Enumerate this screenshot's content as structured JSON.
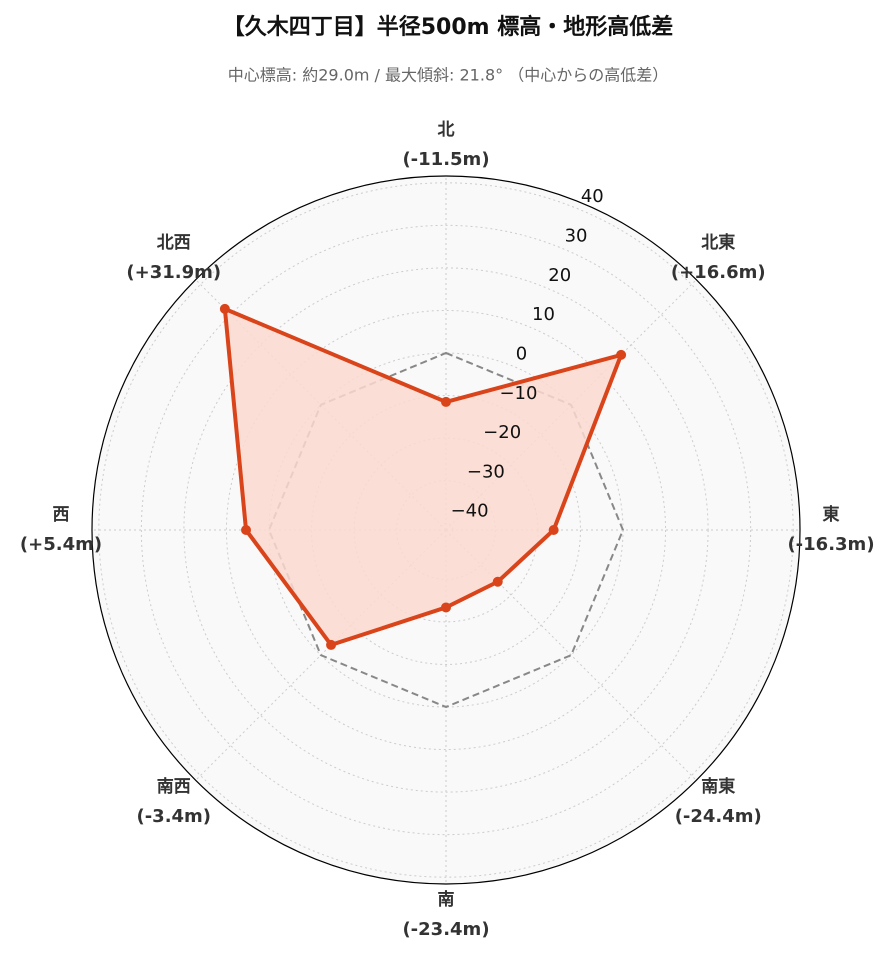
{
  "chart_data": {
    "type": "radar",
    "title": "【久木四丁目】半径500m 標高・地形高低差",
    "subtitle": "中心標高: 約29.0m / 最大傾斜: 21.8° （中心からの高低差）",
    "categories": [
      "北",
      "北東",
      "東",
      "南東",
      "南",
      "南西",
      "西",
      "北西"
    ],
    "values": [
      -11.5,
      16.6,
      -16.3,
      -24.4,
      -23.4,
      -3.4,
      5.4,
      31.9
    ],
    "value_labels": [
      "(-11.5m)",
      "(+16.6m)",
      "(-16.3m)",
      "(-24.4m)",
      "(-23.4m)",
      "(-3.4m)",
      "(+5.4m)",
      "(+31.9m)"
    ],
    "color": "#d9441b",
    "fill_color": "#fbd9cf",
    "rlim": [
      -41.6,
      41.6
    ],
    "rticks": [
      {
        "value": -40,
        "label": "−40"
      },
      {
        "value": -30,
        "label": "−30"
      },
      {
        "value": -20,
        "label": "−20"
      },
      {
        "value": -10,
        "label": "−10"
      },
      0,
      10,
      20,
      30,
      40
    ],
    "reference_line": {
      "value": 0,
      "color": "#888888"
    },
    "grid": true
  }
}
